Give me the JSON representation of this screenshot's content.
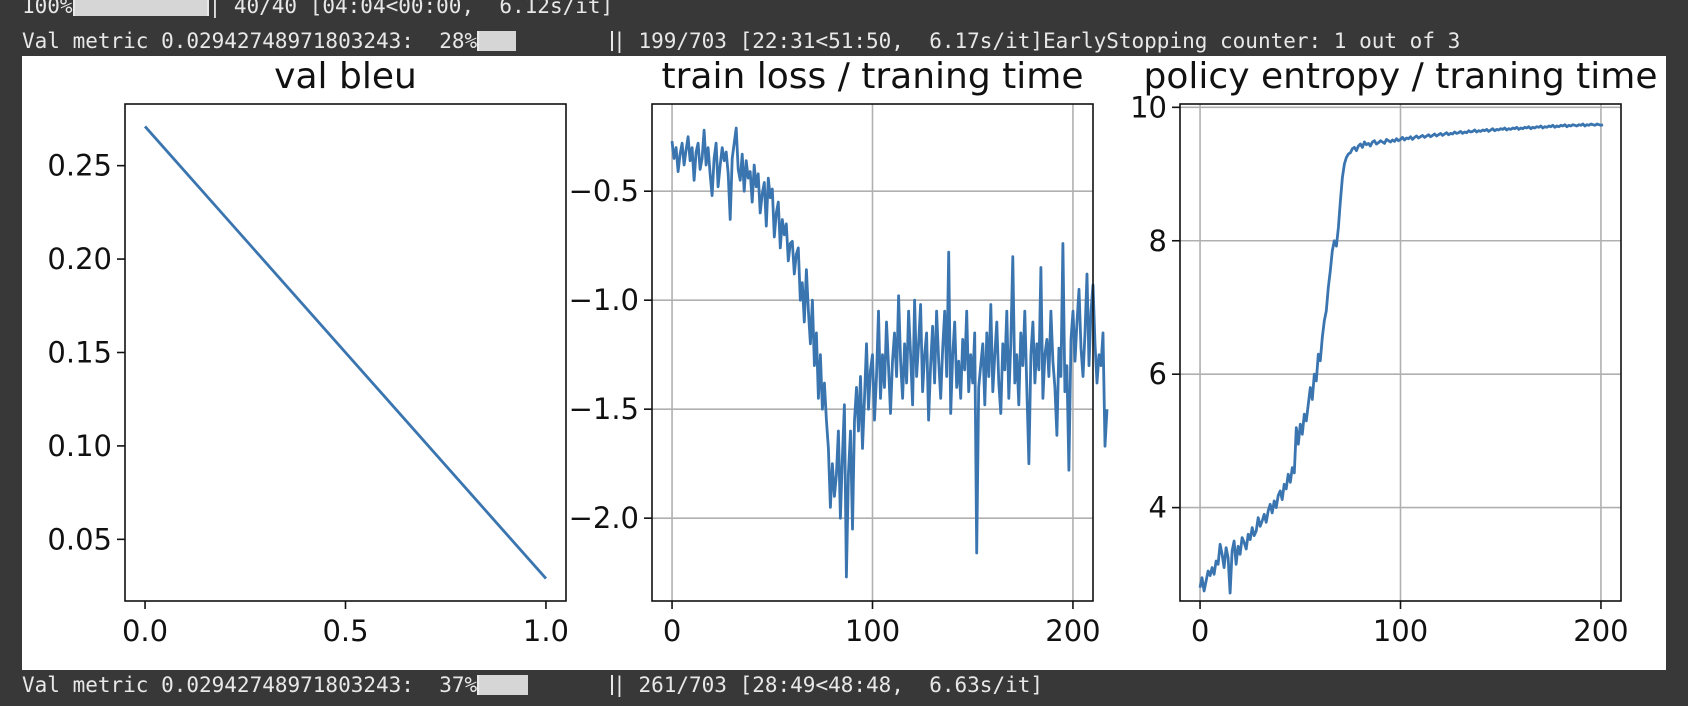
{
  "log": {
    "top_partial": {
      "percent": "100%",
      "progress": 1.0,
      "rest": "| 40/40 [04:04<00:00,  6.12s/it]"
    },
    "top": {
      "prefix": "Val metric 0.02942748971803243:  28%",
      "progress": 0.28,
      "rest": "| 199/703 [22:31<51:50,  6.17s/it]EarlyStopping counter: 1 out of 3"
    },
    "bottom": {
      "prefix": "Val metric 0.02942748971803243:  37%",
      "progress": 0.37,
      "rest": "| 261/703 [28:49<48:48,  6.63s/it]"
    }
  },
  "chart_data": [
    {
      "type": "line",
      "title": "val bleu",
      "xlabel": "",
      "ylabel": "",
      "xlim": [
        -0.05,
        1.05
      ],
      "ylim": [
        0.017,
        0.283
      ],
      "xticks": [
        0.0,
        0.5,
        1.0
      ],
      "xtick_labels": [
        "0.0",
        "0.5",
        "1.0"
      ],
      "yticks": [
        0.05,
        0.1,
        0.15,
        0.2,
        0.25
      ],
      "ytick_labels": [
        "0.05",
        "0.10",
        "0.15",
        "0.20",
        "0.25"
      ],
      "grid": false,
      "color": "#3a75b0",
      "x": [
        0,
        1
      ],
      "y": [
        0.271,
        0.029
      ]
    },
    {
      "type": "line",
      "title": "train loss / traning time",
      "xlabel": "",
      "ylabel": "",
      "xlim": [
        -10,
        210
      ],
      "ylim": [
        -2.38,
        -0.1
      ],
      "xticks": [
        0,
        100,
        200
      ],
      "xtick_labels": [
        "0",
        "100",
        "200"
      ],
      "yticks": [
        -2.0,
        -1.5,
        -1.0,
        -0.5
      ],
      "ytick_labels": [
        "−2.0",
        "−1.5",
        "−1.0",
        "−0.5"
      ],
      "grid": true,
      "color": "#3a75b0",
      "x_start": 0,
      "x_step": 1,
      "y": [
        -0.27,
        -0.35,
        -0.3,
        -0.41,
        -0.33,
        -0.28,
        -0.38,
        -0.31,
        -0.25,
        -0.36,
        -0.3,
        -0.45,
        -0.32,
        -0.28,
        -0.4,
        -0.35,
        -0.22,
        -0.38,
        -0.3,
        -0.42,
        -0.52,
        -0.35,
        -0.28,
        -0.48,
        -0.38,
        -0.3,
        -0.36,
        -0.32,
        -0.42,
        -0.63,
        -0.35,
        -0.28,
        -0.21,
        -0.4,
        -0.45,
        -0.33,
        -0.5,
        -0.36,
        -0.44,
        -0.41,
        -0.55,
        -0.38,
        -0.48,
        -0.42,
        -0.6,
        -0.51,
        -0.46,
        -0.66,
        -0.44,
        -0.53,
        -0.49,
        -0.71,
        -0.6,
        -0.55,
        -0.76,
        -0.63,
        -0.7,
        -0.65,
        -0.82,
        -0.74,
        -0.73,
        -0.88,
        -0.79,
        -0.76,
        -1.0,
        -0.92,
        -1.1,
        -0.86,
        -1.05,
        -1.2,
        -1.0,
        -1.3,
        -1.15,
        -1.45,
        -1.25,
        -1.5,
        -1.38,
        -1.55,
        -1.68,
        -1.95,
        -1.75,
        -1.9,
        -1.8,
        -1.6,
        -2.0,
        -1.72,
        -1.48,
        -2.27,
        -1.8,
        -1.6,
        -2.05,
        -1.55,
        -1.4,
        -1.6,
        -1.35,
        -1.68,
        -1.45,
        -1.2,
        -1.5,
        -1.32,
        -1.25,
        -1.55,
        -1.35,
        -1.05,
        -1.45,
        -1.25,
        -1.4,
        -1.1,
        -1.3,
        -1.52,
        -1.28,
        -1.15,
        -1.35,
        -0.98,
        -1.28,
        -1.45,
        -1.2,
        -1.38,
        -1.05,
        -1.25,
        -1.48,
        -1.0,
        -1.35,
        -1.2,
        -1.02,
        -1.42,
        -1.25,
        -1.15,
        -1.55,
        -1.3,
        -1.12,
        -1.38,
        -1.05,
        -1.28,
        -1.45,
        -1.22,
        -1.05,
        -1.35,
        -0.78,
        -1.52,
        -1.25,
        -1.1,
        -1.4,
        -1.28,
        -1.45,
        -1.18,
        -1.32,
        -1.05,
        -1.42,
        -1.25,
        -1.38,
        -1.15,
        -2.16,
        -1.4,
        -1.3,
        -1.2,
        -1.48,
        -1.15,
        -1.35,
        -1.02,
        -1.42,
        -1.25,
        -1.1,
        -1.38,
        -1.52,
        -1.2,
        -1.32,
        -1.05,
        -1.45,
        -1.2,
        -0.8,
        -1.38,
        -1.25,
        -1.48,
        -1.15,
        -1.3,
        -1.05,
        -1.4,
        -1.75,
        -1.25,
        -1.1,
        -1.38,
        -1.2,
        -1.32,
        -0.85,
        -1.45,
        -1.25,
        -1.18,
        -1.35,
        -1.05,
        -1.28,
        -1.4,
        -1.62,
        -1.22,
        -1.35,
        -0.74,
        -1.42,
        -1.3,
        -1.78,
        -1.18,
        -1.05,
        -1.28,
        -1.1,
        -0.95,
        -1.22,
        -1.35,
        -1.15,
        -0.88,
        -1.3,
        -1.05,
        -0.93,
        -1.2,
        -1.38,
        -1.25,
        -1.3,
        -1.15,
        -1.67,
        -1.5
      ]
    },
    {
      "type": "line",
      "title": "policy entropy / traning time",
      "xlabel": "",
      "ylabel": "",
      "xlim": [
        -10,
        210
      ],
      "ylim": [
        2.6,
        10.05
      ],
      "xticks": [
        0,
        100,
        200
      ],
      "xtick_labels": [
        "0",
        "100",
        "200"
      ],
      "yticks": [
        4,
        6,
        8,
        10
      ],
      "ytick_labels": [
        "4",
        "6",
        "8",
        "10"
      ],
      "grid": true,
      "color": "#3a75b0",
      "x_start": 0,
      "x_step": 1,
      "y": [
        2.8,
        2.95,
        2.75,
        2.9,
        3.05,
        2.98,
        3.1,
        3.0,
        3.2,
        3.15,
        3.45,
        3.3,
        3.1,
        3.4,
        3.25,
        2.72,
        3.35,
        3.5,
        3.15,
        3.42,
        3.3,
        3.55,
        3.48,
        3.38,
        3.6,
        3.52,
        3.7,
        3.58,
        3.65,
        3.85,
        3.72,
        3.8,
        3.9,
        3.78,
        3.95,
        4.05,
        3.92,
        4.1,
        4.0,
        4.18,
        4.25,
        4.12,
        4.35,
        4.28,
        4.5,
        4.38,
        4.6,
        4.52,
        5.2,
        4.95,
        5.25,
        5.1,
        5.4,
        5.3,
        5.55,
        5.8,
        5.62,
        6.0,
        5.9,
        6.3,
        6.2,
        6.55,
        6.8,
        6.95,
        7.3,
        7.55,
        7.85,
        8.0,
        7.92,
        8.2,
        8.6,
        8.95,
        9.15,
        9.25,
        9.3,
        9.32,
        9.38,
        9.4,
        9.35,
        9.42,
        9.45,
        9.4,
        9.48,
        9.44,
        9.46,
        9.42,
        9.48,
        9.5,
        9.45,
        9.47,
        9.5,
        9.48,
        9.46,
        9.52,
        9.5,
        9.48,
        9.51,
        9.49,
        9.53,
        9.5,
        9.52,
        9.55,
        9.51,
        9.54,
        9.53,
        9.56,
        9.52,
        9.55,
        9.57,
        9.54,
        9.56,
        9.58,
        9.55,
        9.57,
        9.59,
        9.56,
        9.58,
        9.6,
        9.57,
        9.59,
        9.61,
        9.58,
        9.6,
        9.62,
        9.59,
        9.61,
        9.6,
        9.63,
        9.61,
        9.62,
        9.64,
        9.61,
        9.63,
        9.62,
        9.65,
        9.63,
        9.64,
        9.66,
        9.63,
        9.65,
        9.64,
        9.66,
        9.65,
        9.67,
        9.64,
        9.66,
        9.68,
        9.65,
        9.67,
        9.66,
        9.68,
        9.67,
        9.69,
        9.66,
        9.68,
        9.67,
        9.69,
        9.68,
        9.7,
        9.67,
        9.69,
        9.68,
        9.7,
        9.69,
        9.71,
        9.68,
        9.7,
        9.69,
        9.71,
        9.7,
        9.72,
        9.69,
        9.71,
        9.7,
        9.72,
        9.71,
        9.73,
        9.7,
        9.72,
        9.71,
        9.73,
        9.72,
        9.74,
        9.71,
        9.73,
        9.72,
        9.74,
        9.73,
        9.72,
        9.74,
        9.73,
        9.75,
        9.72,
        9.74,
        9.73,
        9.75,
        9.74,
        9.73,
        9.75,
        9.74,
        9.73,
        9.74
      ]
    }
  ]
}
